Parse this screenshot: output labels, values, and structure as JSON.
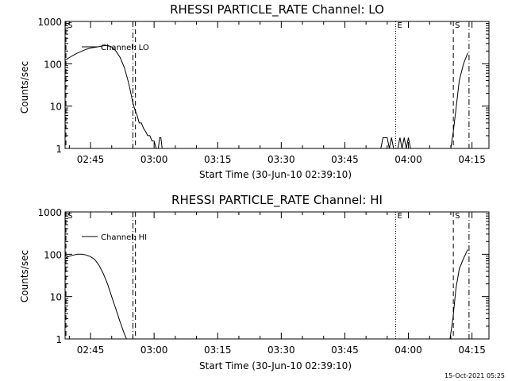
{
  "footer": {
    "date": "15-Oct-2021 05:25"
  },
  "chart_data": [
    {
      "type": "line",
      "title": "RHESSI PARTICLE_RATE Channel: LO",
      "xlabel": "Start Time (30-Jun-10 02:39:10)",
      "ylabel": "Counts/sec",
      "yscale": "log",
      "ylim": [
        1,
        1000
      ],
      "xlim_minutes": [
        0,
        100
      ],
      "x_ticks": [
        {
          "t": 6,
          "label": "02:45"
        },
        {
          "t": 21,
          "label": "03:00"
        },
        {
          "t": 36,
          "label": "03:15"
        },
        {
          "t": 51,
          "label": "03:30"
        },
        {
          "t": 66,
          "label": "03:45"
        },
        {
          "t": 81,
          "label": "04:00"
        },
        {
          "t": 96,
          "label": "04:15"
        }
      ],
      "y_ticks": [
        {
          "v": 1,
          "label": "1"
        },
        {
          "v": 10,
          "label": "10"
        },
        {
          "v": 100,
          "label": "100"
        },
        {
          "v": 1000,
          "label": "1000"
        }
      ],
      "markers": [
        {
          "t": 0.2,
          "label": "S",
          "style": "dashed"
        },
        {
          "t": 16,
          "label": "",
          "style": "dashdot"
        },
        {
          "t": 16.6,
          "label": "",
          "style": "dashed"
        },
        {
          "t": 78,
          "label": "E",
          "style": "dotted"
        },
        {
          "t": 91.6,
          "label": "S",
          "style": "dashed"
        },
        {
          "t": 95.3,
          "label": "",
          "style": "dashdot"
        }
      ],
      "legend": {
        "label": "Channel: LO",
        "position": "top-left"
      },
      "series": [
        {
          "name": "Channel: LO",
          "segments": [
            [
              [
                0,
                120
              ],
              [
                1,
                140
              ],
              [
                2,
                160
              ],
              [
                3,
                180
              ],
              [
                4,
                200
              ],
              [
                5,
                220
              ],
              [
                6,
                235
              ],
              [
                7,
                245
              ],
              [
                8,
                255
              ],
              [
                9,
                265
              ],
              [
                10,
                270
              ],
              [
                11,
                250
              ],
              [
                12,
                200
              ],
              [
                13,
                140
              ],
              [
                14,
                80
              ],
              [
                15,
                35
              ],
              [
                16,
                12
              ],
              [
                16.5,
                8
              ],
              [
                17,
                6
              ],
              [
                17.5,
                4
              ],
              [
                18,
                4
              ],
              [
                18.5,
                3
              ],
              [
                19,
                2.5
              ],
              [
                19.5,
                2
              ],
              [
                20,
                2
              ],
              [
                20.5,
                1.5
              ],
              [
                21,
                1.5
              ],
              [
                21.5,
                1
              ],
              [
                22,
                1
              ]
            ],
            [
              [
                22,
                1
              ],
              [
                22.3,
                1.8
              ],
              [
                22.6,
                1.8
              ],
              [
                22.9,
                1
              ]
            ],
            [
              [
                74.5,
                1
              ],
              [
                75,
                1.8
              ],
              [
                76,
                1.8
              ],
              [
                76.5,
                1
              ],
              [
                77,
                1.8
              ],
              [
                77.5,
                1
              ]
            ],
            [
              [
                78.5,
                1
              ],
              [
                79,
                1.8
              ],
              [
                79.5,
                1
              ],
              [
                80,
                1.8
              ],
              [
                80.5,
                1
              ],
              [
                81,
                1.8
              ],
              [
                81.5,
                1
              ]
            ],
            [
              [
                91,
                1
              ],
              [
                91.6,
                2.5
              ],
              [
                92.2,
                8
              ],
              [
                93,
                40
              ],
              [
                94,
                100
              ],
              [
                95,
                180
              ]
            ]
          ]
        }
      ]
    },
    {
      "type": "line",
      "title": "RHESSI PARTICLE_RATE Channel: HI",
      "xlabel": "Start Time (30-Jun-10 02:39:10)",
      "ylabel": "Counts/sec",
      "yscale": "log",
      "ylim": [
        1,
        1000
      ],
      "xlim_minutes": [
        0,
        100
      ],
      "x_ticks": [
        {
          "t": 6,
          "label": "02:45"
        },
        {
          "t": 21,
          "label": "03:00"
        },
        {
          "t": 36,
          "label": "03:15"
        },
        {
          "t": 51,
          "label": "03:30"
        },
        {
          "t": 66,
          "label": "03:45"
        },
        {
          "t": 81,
          "label": "04:00"
        },
        {
          "t": 96,
          "label": "04:15"
        }
      ],
      "y_ticks": [
        {
          "v": 1,
          "label": "1"
        },
        {
          "v": 10,
          "label": "10"
        },
        {
          "v": 100,
          "label": "100"
        },
        {
          "v": 1000,
          "label": "1000"
        }
      ],
      "markers": [
        {
          "t": 0.2,
          "label": "S",
          "style": "dashed"
        },
        {
          "t": 16,
          "label": "",
          "style": "dashdot"
        },
        {
          "t": 16.6,
          "label": "",
          "style": "dashed"
        },
        {
          "t": 78,
          "label": "E",
          "style": "dotted"
        },
        {
          "t": 91.6,
          "label": "S",
          "style": "dashed"
        },
        {
          "t": 95.3,
          "label": "",
          "style": "dashdot"
        }
      ],
      "legend": {
        "label": "Channel: HI",
        "position": "top-left"
      },
      "series": [
        {
          "name": "Channel: HI",
          "segments": [
            [
              [
                0,
                80
              ],
              [
                1,
                90
              ],
              [
                2,
                96
              ],
              [
                3,
                100
              ],
              [
                4,
                100
              ],
              [
                5,
                96
              ],
              [
                6,
                88
              ],
              [
                7,
                75
              ],
              [
                8,
                55
              ],
              [
                9,
                35
              ],
              [
                10,
                20
              ],
              [
                11,
                10
              ],
              [
                12,
                5
              ],
              [
                13,
                2.5
              ],
              [
                14,
                1.3
              ],
              [
                14.5,
                1
              ]
            ],
            [
              [
                90.8,
                1
              ],
              [
                91.5,
                3
              ],
              [
                92.2,
                15
              ],
              [
                93,
                45
              ],
              [
                94,
                80
              ],
              [
                95,
                130
              ]
            ]
          ]
        }
      ]
    }
  ]
}
